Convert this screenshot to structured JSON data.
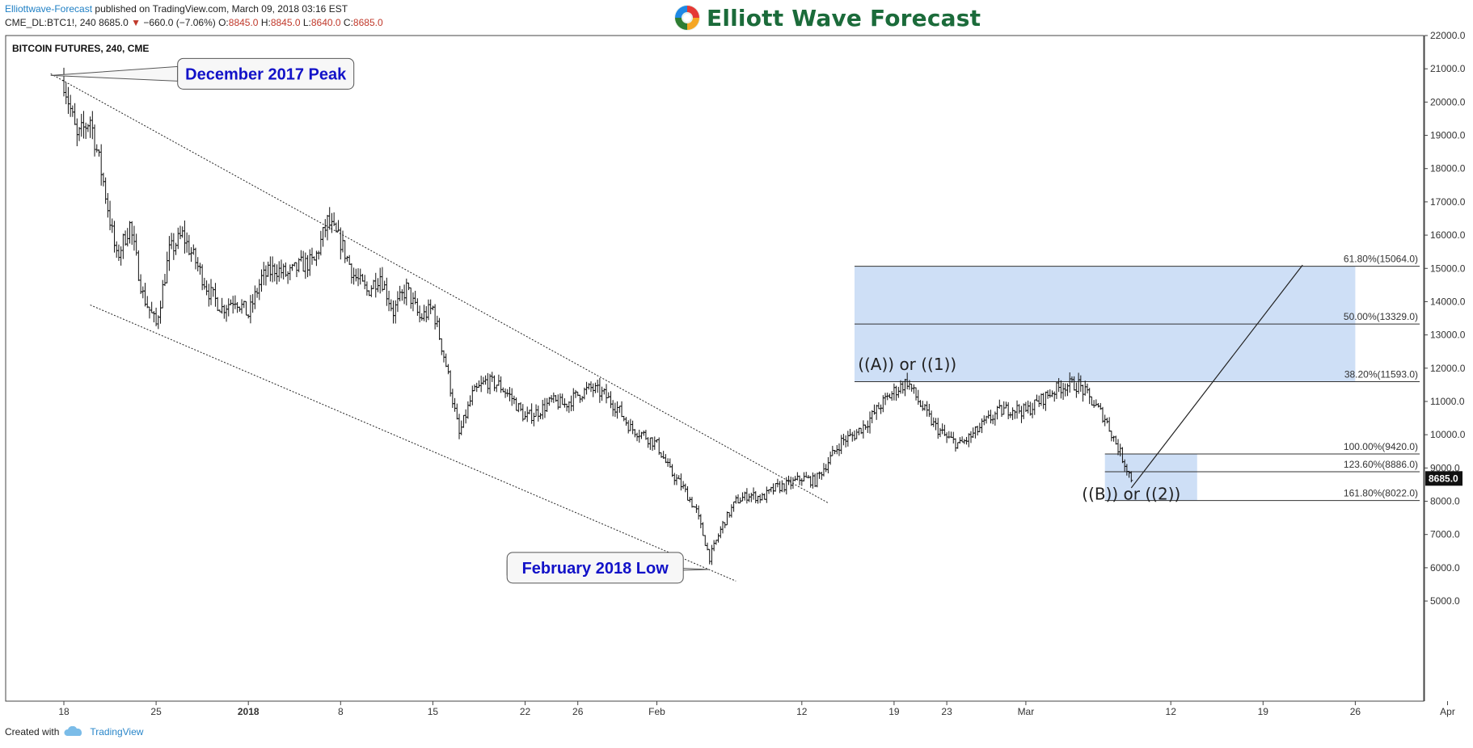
{
  "header": {
    "publisher": "Elliottwave-Forecast",
    "published_text": "published on TradingView.com, March 09, 2018 03:16 EST",
    "symbol": "CME_DL:BTC1!, 240",
    "last": "8685.0",
    "change": "−660.0 (−7.06%)",
    "open_label": "O:",
    "open": "8845.0",
    "high_label": "H:",
    "high": "8845.0",
    "low_label": "L:",
    "low": "8640.0",
    "close_label": "C:",
    "close": "8685.0",
    "down_color": "#c0392b"
  },
  "brand": {
    "name": "Elliott Wave Forecast",
    "color": "#1b6b3a"
  },
  "footer": {
    "created_with": "Created with",
    "tradingview": "TradingView"
  },
  "chart_data": {
    "type": "candlestick",
    "title": "BITCOIN FUTURES, 240, CME",
    "y_axis": {
      "min": 5000,
      "max": 22000,
      "position": "right",
      "ticks": [
        "5000.0",
        "6000.0",
        "7000.0",
        "8000.0",
        "9000.0",
        "10000.0",
        "11000.0",
        "12000.0",
        "13000.0",
        "14000.0",
        "15000.0",
        "16000.0",
        "17000.0",
        "18000.0",
        "19000.0",
        "20000.0",
        "21000.0",
        "22000.0"
      ]
    },
    "x_axis": {
      "range": [
        "2017-12-17",
        "2018-04-02"
      ],
      "ticks": [
        {
          "date": "2017-12-18",
          "label": "18"
        },
        {
          "date": "2017-12-25",
          "label": "25"
        },
        {
          "date": "2018-01-01",
          "label": "2018"
        },
        {
          "date": "2018-01-08",
          "label": "8"
        },
        {
          "date": "2018-01-15",
          "label": "15"
        },
        {
          "date": "2018-01-22",
          "label": "22"
        },
        {
          "date": "2018-01-26",
          "label": "26"
        },
        {
          "date": "2018-02-01",
          "label": "Feb"
        },
        {
          "date": "2018-02-12",
          "label": "12"
        },
        {
          "date": "2018-02-19",
          "label": "19"
        },
        {
          "date": "2018-02-23",
          "label": "23"
        },
        {
          "date": "2018-03-01",
          "label": "Mar"
        },
        {
          "date": "2018-03-12",
          "label": "12"
        },
        {
          "date": "2018-03-19",
          "label": "19"
        },
        {
          "date": "2018-03-26",
          "label": "26"
        },
        {
          "date": "2018-04-02",
          "label": "Apr"
        }
      ]
    },
    "last_price": "8685.0",
    "price_path": [
      [
        "2017-12-18",
        20650
      ],
      [
        "2017-12-19",
        18900
      ],
      [
        "2017-12-20",
        19500
      ],
      [
        "2017-12-21",
        17600
      ],
      [
        "2017-12-22",
        15300
      ],
      [
        "2017-12-23",
        16300
      ],
      [
        "2017-12-24",
        14200
      ],
      [
        "2017-12-25",
        13300
      ],
      [
        "2017-12-26",
        15500
      ],
      [
        "2017-12-27",
        16000
      ],
      [
        "2017-12-28",
        15200
      ],
      [
        "2017-12-29",
        14300
      ],
      [
        "2017-12-30",
        13800
      ],
      [
        "2017-12-31",
        14100
      ],
      [
        "2018-01-01",
        13600
      ],
      [
        "2018-01-02",
        14700
      ],
      [
        "2018-01-03",
        15000
      ],
      [
        "2018-01-04",
        14800
      ],
      [
        "2018-01-05",
        15100
      ],
      [
        "2018-01-06",
        15200
      ],
      [
        "2018-01-07",
        16400
      ],
      [
        "2018-01-08",
        15800
      ],
      [
        "2018-01-09",
        14800
      ],
      [
        "2018-01-10",
        14300
      ],
      [
        "2018-01-11",
        14800
      ],
      [
        "2018-01-12",
        13700
      ],
      [
        "2018-01-13",
        14400
      ],
      [
        "2018-01-14",
        13500
      ],
      [
        "2018-01-15",
        13800
      ],
      [
        "2018-01-16",
        12100
      ],
      [
        "2018-01-17",
        10000
      ],
      [
        "2018-01-18",
        11200
      ],
      [
        "2018-01-19",
        11600
      ],
      [
        "2018-01-20",
        11500
      ],
      [
        "2018-01-21",
        11100
      ],
      [
        "2018-01-22",
        10500
      ],
      [
        "2018-01-23",
        10700
      ],
      [
        "2018-01-24",
        11000
      ],
      [
        "2018-01-25",
        10900
      ],
      [
        "2018-01-26",
        11200
      ],
      [
        "2018-01-27",
        11400
      ],
      [
        "2018-01-28",
        11200
      ],
      [
        "2018-01-29",
        10800
      ],
      [
        "2018-01-30",
        10200
      ],
      [
        "2018-01-31",
        10000
      ],
      [
        "2018-02-01",
        9700
      ],
      [
        "2018-02-02",
        8900
      ],
      [
        "2018-02-03",
        8400
      ],
      [
        "2018-02-04",
        7700
      ],
      [
        "2018-02-05",
        6300
      ],
      [
        "2018-02-06",
        7300
      ],
      [
        "2018-02-07",
        8000
      ],
      [
        "2018-02-08",
        8200
      ],
      [
        "2018-02-09",
        8100
      ],
      [
        "2018-02-10",
        8400
      ],
      [
        "2018-02-11",
        8500
      ],
      [
        "2018-02-12",
        8700
      ],
      [
        "2018-02-13",
        8600
      ],
      [
        "2018-02-14",
        9200
      ],
      [
        "2018-02-15",
        9800
      ],
      [
        "2018-02-16",
        10000
      ],
      [
        "2018-02-17",
        10400
      ],
      [
        "2018-02-18",
        10900
      ],
      [
        "2018-02-19",
        11300
      ],
      [
        "2018-02-20",
        11600
      ],
      [
        "2018-02-21",
        10900
      ],
      [
        "2018-02-22",
        10300
      ],
      [
        "2018-02-23",
        9900
      ],
      [
        "2018-02-24",
        9700
      ],
      [
        "2018-02-25",
        10000
      ],
      [
        "2018-02-26",
        10400
      ],
      [
        "2018-02-27",
        10700
      ],
      [
        "2018-02-28",
        10800
      ],
      [
        "2018-03-01",
        10700
      ],
      [
        "2018-03-02",
        11000
      ],
      [
        "2018-03-03",
        11300
      ],
      [
        "2018-03-04",
        11500
      ],
      [
        "2018-03-05",
        11500
      ],
      [
        "2018-03-06",
        11000
      ],
      [
        "2018-03-07",
        10500
      ],
      [
        "2018-03-08",
        9600
      ],
      [
        "2018-03-09",
        8685
      ]
    ],
    "trendlines": [
      {
        "from": [
          "2017-12-17",
          20850
        ],
        "to": [
          "2018-02-14",
          7950
        ]
      },
      {
        "from": [
          "2017-12-20",
          13900
        ],
        "to": [
          "2018-02-07",
          5600
        ]
      },
      {
        "from": [
          "2018-03-09",
          8400
        ],
        "to": [
          "2018-03-22",
          15100
        ]
      }
    ],
    "fib_zones": [
      {
        "from": "2018-02-16",
        "to": "2018-03-26",
        "low": 11593,
        "high": 15064
      },
      {
        "from": "2018-03-07",
        "to": "2018-03-14",
        "low": 8022,
        "high": 9420
      }
    ],
    "fib_levels": [
      {
        "label": "61.80%(15064.0)",
        "value": 15064,
        "from": "2018-02-16"
      },
      {
        "label": "50.00%(13329.0)",
        "value": 13329,
        "from": "2018-02-16"
      },
      {
        "label": "38.20%(11593.0)",
        "value": 11593,
        "from": "2018-02-16"
      },
      {
        "label": "100.00%(9420.0)",
        "value": 9420,
        "from": "2018-03-07"
      },
      {
        "label": "123.60%(8886.0)",
        "value": 8886,
        "from": "2018-03-07"
      },
      {
        "label": "161.80%(8022.0)",
        "value": 8022,
        "from": "2018-03-07"
      }
    ],
    "wave_labels": [
      {
        "text": "((A)) or ((1))",
        "date": "2018-02-20",
        "value": 11950
      },
      {
        "text": "((B)) or ((2))",
        "date": "2018-03-09",
        "value": 8050
      }
    ],
    "callouts": [
      {
        "text": "December 2017 Peak",
        "anchor": [
          "2017-12-17",
          20800
        ],
        "box_date": "2017-12-27",
        "box_value": 20850
      },
      {
        "text": "February 2018 Low",
        "anchor": [
          "2018-02-05",
          5950
        ],
        "box_date": "2018-01-21",
        "box_value": 6000
      }
    ]
  }
}
